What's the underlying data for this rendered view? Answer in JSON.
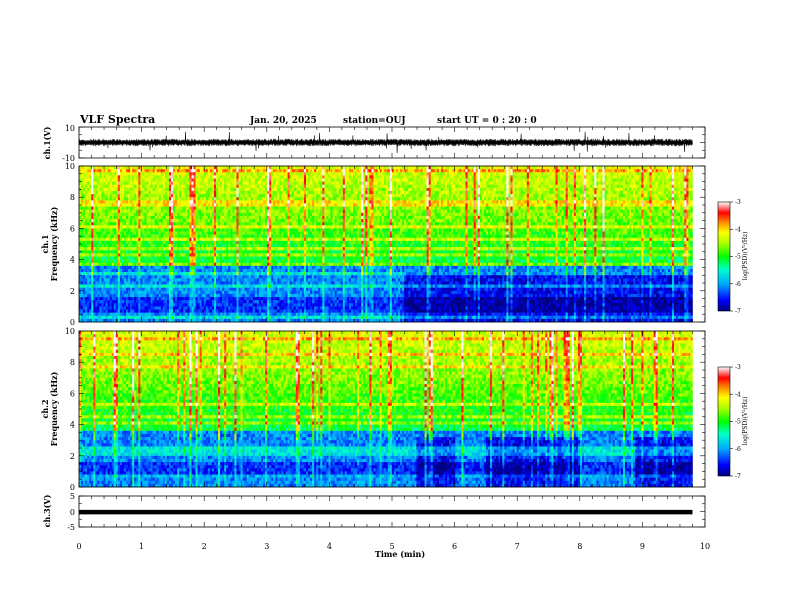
{
  "header": {
    "title": "VLF Spectra",
    "date": "Jan. 20, 2025",
    "station": "station=OUJ",
    "start": "start UT = 0 : 20 : 0"
  },
  "chart_data": [
    {
      "type": "line",
      "panel": "ch1-waveform",
      "ylabel": "ch.1(V)",
      "ylim": [
        -10,
        10
      ],
      "ytick_labels": [
        "10",
        "-10"
      ],
      "xlim": [
        0,
        10
      ],
      "x_end": 9.8,
      "baseline_value": 0,
      "grid": false
    },
    {
      "type": "heatmap",
      "panel": "ch1-spectrogram",
      "ylabel_line1": "ch.1",
      "ylabel_line2": "Frequency (kHz)",
      "ylim": [
        0,
        10
      ],
      "yticks": [
        0,
        2,
        4,
        6,
        8,
        10
      ],
      "ytick_labels": [
        "0",
        "2",
        "4",
        "6",
        "8",
        "10"
      ],
      "xlim": [
        0,
        10
      ],
      "x_end": 9.8,
      "colorbar": {
        "label": "log(PSD)(V²/Hz)",
        "range": [
          -7,
          -3
        ],
        "ticks": [
          -3,
          -4,
          -5,
          -6,
          -7
        ],
        "tick_labels": [
          "-3",
          "-4",
          "-5",
          "-6",
          "-7"
        ],
        "colors": [
          "#000080",
          "#0000ff",
          "#00aaff",
          "#00ffcc",
          "#00ff00",
          "#aaff00",
          "#ffff00",
          "#ff8000",
          "#ff0000",
          "#ffffff"
        ]
      },
      "dark_band": {
        "t_start": 5.2,
        "t_end": 9.8,
        "f_top_khz": 3.3
      }
    },
    {
      "type": "heatmap",
      "panel": "ch2-spectrogram",
      "ylabel_line1": "ch.2",
      "ylabel_line2": "Frequency (kHz)",
      "ylim": [
        0,
        10
      ],
      "yticks": [
        0,
        2,
        4,
        6,
        8,
        10
      ],
      "ytick_labels": [
        "0",
        "2",
        "4",
        "6",
        "8",
        "10"
      ],
      "xlim": [
        0,
        10
      ],
      "x_end": 9.8,
      "colorbar": {
        "label": "log(PSD)(V²/Hz)",
        "range": [
          -7,
          -3
        ],
        "ticks": [
          -3,
          -4,
          -5,
          -6,
          -7
        ],
        "tick_labels": [
          "-3",
          "-4",
          "-5",
          "-6",
          "-7"
        ],
        "colors": [
          "#000080",
          "#0000ff",
          "#00aaff",
          "#00ffcc",
          "#00ff00",
          "#aaff00",
          "#ffff00",
          "#ff8000",
          "#ff0000",
          "#ffffff"
        ]
      },
      "dark_band": {
        "t_start": 5.4,
        "t_end": 9.8,
        "f_top_khz": 3.3
      }
    },
    {
      "type": "line",
      "panel": "ch3-waveform",
      "ylabel": "ch.3(V)",
      "ylim": [
        -5,
        5
      ],
      "ytick_labels": [
        "5",
        "0",
        "-5"
      ],
      "yticks": [
        5,
        0,
        -5
      ],
      "xlim": [
        0,
        10
      ],
      "x_end": 9.8,
      "baseline_value": -0.2
    }
  ],
  "xaxis": {
    "label": "Time (min)",
    "ticks": [
      0,
      1,
      2,
      3,
      4,
      5,
      6,
      7,
      8,
      9,
      10
    ],
    "tick_labels": [
      "0",
      "1",
      "2",
      "3",
      "4",
      "5",
      "6",
      "7",
      "8",
      "9",
      "10"
    ]
  }
}
